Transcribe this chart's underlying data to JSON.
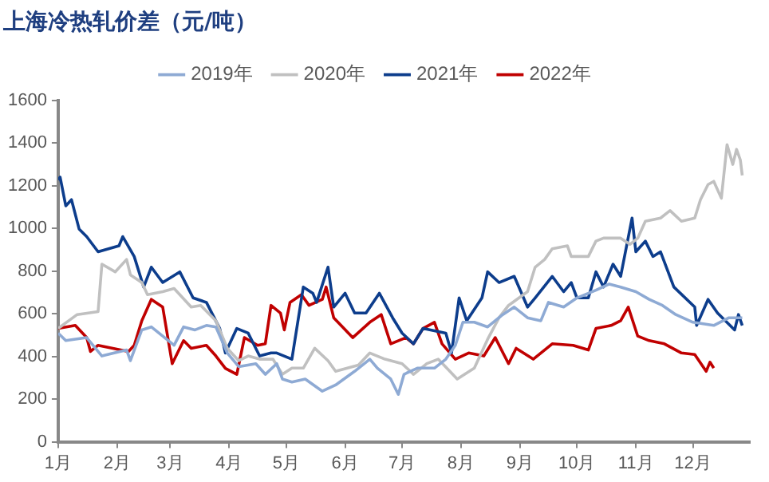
{
  "chart_data": {
    "type": "line",
    "title": "上海冷热轧价差（元/吨）",
    "xlim": [
      "--01-01",
      "--12-31"
    ],
    "xticks": [
      {
        "value": "--01-01",
        "label": "1月"
      },
      {
        "value": "--02-01",
        "label": "2月"
      },
      {
        "value": "--03-01",
        "label": "3月"
      },
      {
        "value": "--04-01",
        "label": "4月"
      },
      {
        "value": "--05-01",
        "label": "5月"
      },
      {
        "value": "--06-01",
        "label": "6月"
      },
      {
        "value": "--07-01",
        "label": "7月"
      },
      {
        "value": "--08-01",
        "label": "8月"
      },
      {
        "value": "--09-01",
        "label": "9月"
      },
      {
        "value": "--10-01",
        "label": "10月"
      },
      {
        "value": "--11-01",
        "label": "11月"
      },
      {
        "value": "--12-01",
        "label": "12月"
      }
    ],
    "ylim": [
      0,
      1600
    ],
    "yticks": [
      0,
      200,
      400,
      600,
      800,
      1000,
      1200,
      1400,
      1600
    ],
    "grid": false,
    "legend": "top",
    "marker": "none",
    "line_style": "solid",
    "series": [
      {
        "name": "2019年",
        "color": "#8eaad4",
        "x": [
          "--01-01",
          "--01-05",
          "--01-16",
          "--01-24",
          "--02-06",
          "--02-08",
          "--02-14",
          "--02-19",
          "--03-03",
          "--03-08",
          "--03-14",
          "--03-20",
          "--03-25",
          "--03-31",
          "--04-06",
          "--04-15",
          "--04-20",
          "--04-26",
          "--04-29",
          "--05-04",
          "--05-11",
          "--05-20",
          "--05-27",
          "--06-06",
          "--06-14",
          "--06-18",
          "--06-25",
          "--06-29",
          "--07-02",
          "--07-09",
          "--07-18",
          "--07-24",
          "--07-29",
          "--08-02",
          "--08-08",
          "--08-15",
          "--08-23",
          "--08-29",
          "--09-05",
          "--09-12",
          "--09-16",
          "--09-24",
          "--10-01",
          "--10-11",
          "--10-18",
          "--10-24",
          "--11-01",
          "--11-08",
          "--11-15",
          "--11-22",
          "--12-01",
          "--12-12",
          "--12-20",
          "--12-27"
        ],
        "values": [
          509,
          474,
          488,
          402,
          430,
          380,
          524,
          538,
          452,
          538,
          524,
          545,
          538,
          416,
          352,
          366,
          316,
          366,
          294,
          280,
          294,
          237,
          266,
          330,
          387,
          345,
          294,
          222,
          316,
          345,
          345,
          387,
          452,
          560,
          560,
          538,
          596,
          631,
          581,
          567,
          653,
          631,
          674,
          710,
          739,
          725,
          703,
          667,
          639,
          596,
          560,
          545,
          581,
          581
        ]
      },
      {
        "name": "2020年",
        "color": "#c0c0c0",
        "x": [
          "--01-01",
          "--01-11",
          "--01-22",
          "--01-24",
          "--01-31",
          "--02-06",
          "--02-08",
          "--02-14",
          "--02-17",
          "--02-25",
          "--03-03",
          "--03-12",
          "--03-17",
          "--03-25",
          "--03-31",
          "--04-06",
          "--04-11",
          "--04-17",
          "--04-24",
          "--04-29",
          "--05-04",
          "--05-10",
          "--05-16",
          "--05-23",
          "--05-27",
          "--06-08",
          "--06-14",
          "--06-22",
          "--07-01",
          "--07-07",
          "--07-14",
          "--07-20",
          "--07-30",
          "--08-08",
          "--08-15",
          "--08-21",
          "--08-26",
          "--09-05",
          "--09-09",
          "--09-14",
          "--09-18",
          "--09-26",
          "--09-28",
          "--10-07",
          "--10-11",
          "--10-15",
          "--10-24",
          "--10-29",
          "--11-02",
          "--11-06",
          "--11-14",
          "--11-19",
          "--11-25",
          "--12-02",
          "--12-05",
          "--12-09",
          "--12-12",
          "--12-16",
          "--12-19",
          "--12-22",
          "--12-24",
          "--12-26",
          "--12-27"
        ],
        "values": [
          531,
          596,
          610,
          832,
          796,
          854,
          782,
          746,
          689,
          703,
          718,
          631,
          639,
          567,
          438,
          380,
          402,
          387,
          387,
          316,
          345,
          345,
          438,
          380,
          330,
          359,
          416,
          387,
          366,
          316,
          366,
          387,
          294,
          345,
          480,
          581,
          639,
          703,
          818,
          854,
          904,
          918,
          868,
          868,
          940,
          954,
          954,
          925,
          954,
          1033,
          1048,
          1083,
          1033,
          1048,
          1134,
          1205,
          1220,
          1141,
          1392,
          1299,
          1370,
          1320,
          1248
        ]
      },
      {
        "name": "2021年",
        "color": "#0d3d8c",
        "x": [
          "--01-01",
          "--01-02",
          "--01-05",
          "--01-08",
          "--01-12",
          "--01-16",
          "--01-22",
          "--02-02",
          "--02-04",
          "--02-10",
          "--02-15",
          "--02-19",
          "--02-25",
          "--03-06",
          "--03-13",
          "--03-20",
          "--03-27",
          "--03-30",
          "--04-05",
          "--04-11",
          "--04-17",
          "--04-23",
          "--04-26",
          "--05-04",
          "--05-10",
          "--05-15",
          "--05-17",
          "--05-23",
          "--05-26",
          "--06-01",
          "--06-06",
          "--06-12",
          "--06-19",
          "--06-26",
          "--07-01",
          "--07-07",
          "--07-12",
          "--07-24",
          "--07-27",
          "--07-31",
          "--08-04",
          "--08-12",
          "--08-15",
          "--08-21",
          "--08-29",
          "--09-05",
          "--09-09",
          "--09-18",
          "--09-24",
          "--09-28",
          "--10-01",
          "--10-07",
          "--10-11",
          "--10-15",
          "--10-20",
          "--10-24",
          "--10-30",
          "--11-01",
          "--11-06",
          "--11-10",
          "--11-14",
          "--11-21",
          "--12-02",
          "--12-03",
          "--12-09",
          "--12-14",
          "--12-23",
          "--12-25",
          "--12-27"
        ],
        "values": [
          1227,
          1240,
          1105,
          1134,
          997,
          961,
          890,
          918,
          961,
          868,
          725,
          818,
          746,
          796,
          674,
          653,
          531,
          416,
          531,
          509,
          402,
          416,
          416,
          387,
          725,
          696,
          653,
          818,
          631,
          696,
          603,
          603,
          696,
          581,
          509,
          459,
          531,
          509,
          416,
          674,
          567,
          674,
          796,
          746,
          775,
          631,
          674,
          775,
          703,
          746,
          674,
          674,
          796,
          725,
          832,
          775,
          1048,
          890,
          940,
          868,
          890,
          725,
          631,
          545,
          667,
          603,
          524,
          596,
          545
        ]
      },
      {
        "name": "2022年",
        "color": "#c00000",
        "x": [
          "--01-01",
          "--01-10",
          "--01-16",
          "--01-18",
          "--01-22",
          "--02-07",
          "--02-10",
          "--02-14",
          "--02-19",
          "--02-25",
          "--03-02",
          "--03-08",
          "--03-12",
          "--03-20",
          "--03-25",
          "--03-30",
          "--04-05",
          "--04-09",
          "--04-16",
          "--04-20",
          "--04-23",
          "--04-28",
          "--04-30",
          "--05-03",
          "--05-09",
          "--05-13",
          "--05-20",
          "--05-22",
          "--05-26",
          "--06-05",
          "--06-14",
          "--06-20",
          "--06-25",
          "--07-03",
          "--07-07",
          "--07-12",
          "--07-18",
          "--07-22",
          "--07-29",
          "--08-05",
          "--08-13",
          "--08-17",
          "--08-19",
          "--08-26",
          "--08-30",
          "--09-08",
          "--09-18",
          "--09-29",
          "--10-07",
          "--10-11",
          "--10-19",
          "--10-24",
          "--10-28",
          "--11-02",
          "--11-08",
          "--11-16",
          "--11-25",
          "--12-02",
          "--12-08",
          "--12-10",
          "--12-12"
        ],
        "values": [
          531,
          545,
          488,
          423,
          452,
          423,
          452,
          567,
          667,
          631,
          366,
          474,
          438,
          452,
          402,
          344,
          316,
          488,
          452,
          459,
          639,
          603,
          524,
          653,
          689,
          639,
          667,
          725,
          581,
          488,
          560,
          596,
          459,
          488,
          459,
          531,
          560,
          459,
          387,
          416,
          402,
          459,
          488,
          366,
          438,
          387,
          459,
          452,
          430,
          531,
          545,
          567,
          631,
          495,
          474,
          459,
          416,
          409,
          330,
          373,
          345
        ]
      }
    ]
  }
}
